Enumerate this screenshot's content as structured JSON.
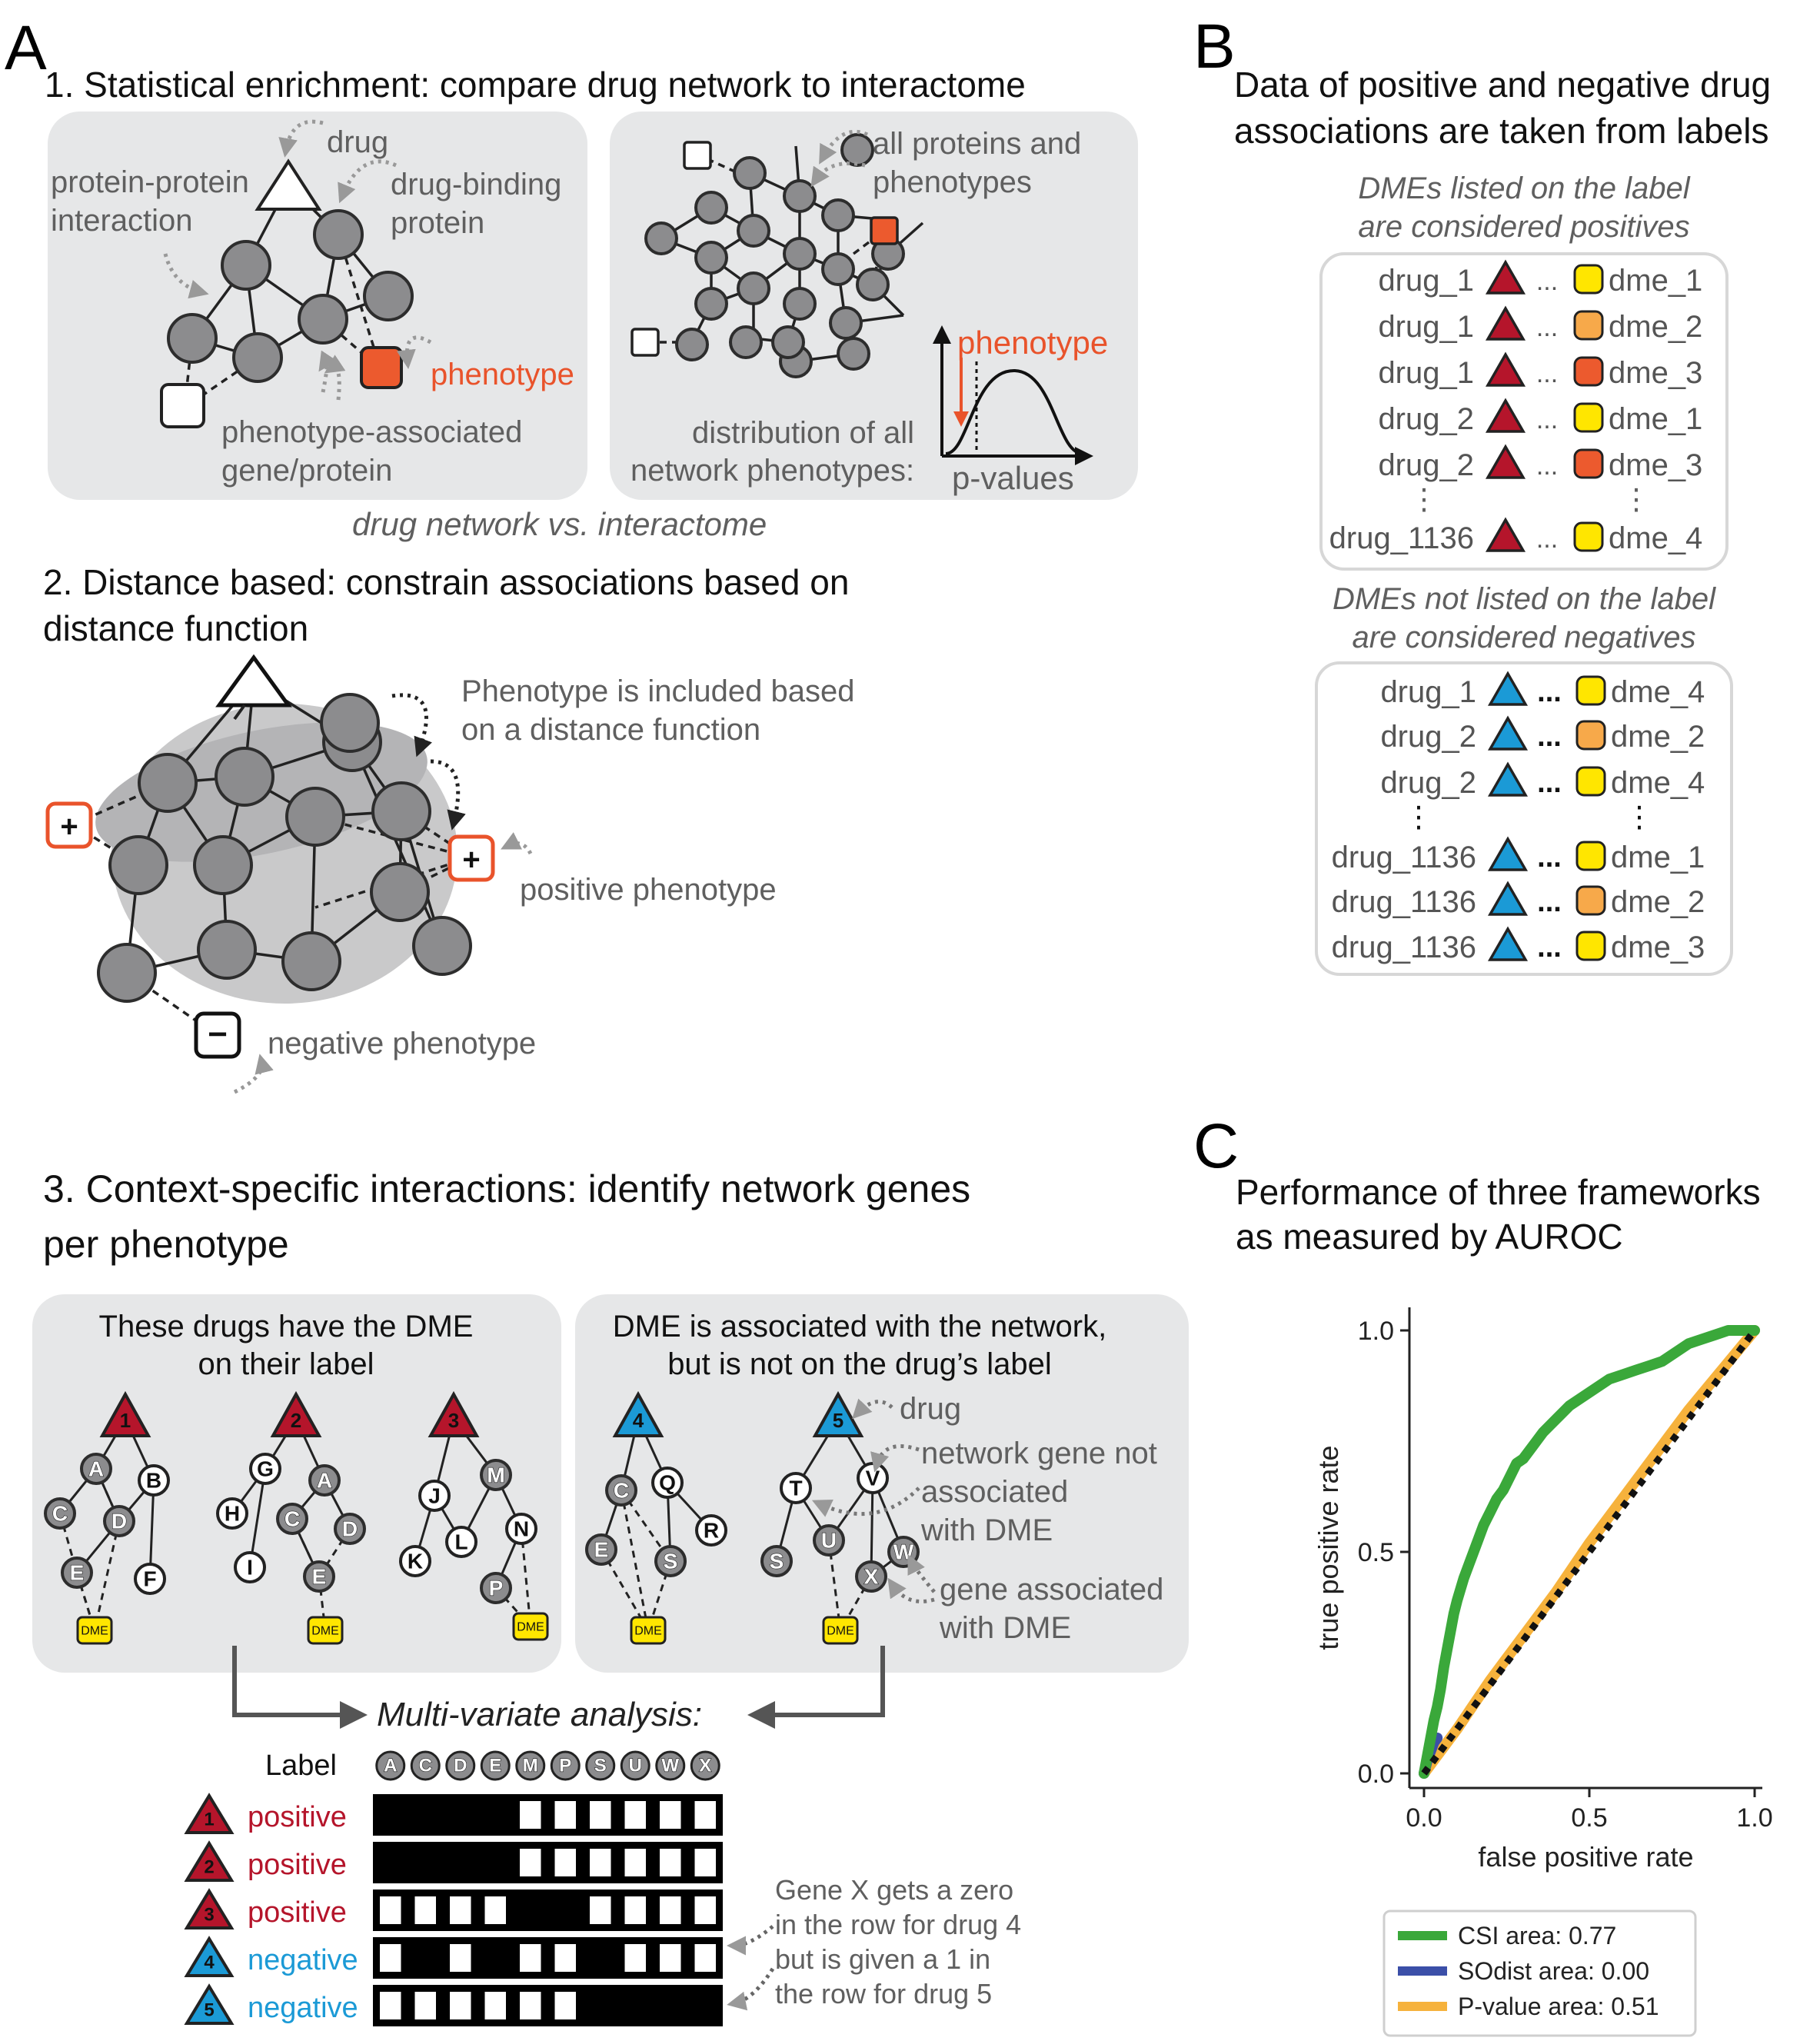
{
  "panelA": {
    "letter": "A",
    "s1_title": "1. Statistical enrichment: compare drug network to interactome",
    "s1_drug": "drug",
    "s1_ppi_1": "protein-protein",
    "s1_ppi_2": "interaction",
    "s1_dbp_1": "drug-binding",
    "s1_dbp_2": "protein",
    "s1_phenotype": "phenotype",
    "s1_pag_1": "phenotype-associated",
    "s1_pag_2": "gene/protein",
    "s1_all_1": "all proteins and",
    "s1_all_2": "phenotypes",
    "s1_dist_1": "distribution of all",
    "s1_dist_2": "network phenotypes:",
    "s1_pheno2": "phenotype",
    "s1_pvalues": "p-values",
    "s1_caption": "drug network vs. interactome",
    "s2_title_1": "2. Distance based: constrain associations based on",
    "s2_title_2": "distance function",
    "s2_note_1": "Phenotype is included based",
    "s2_note_2": "on a distance function",
    "s2_pos": "positive phenotype",
    "s2_neg": "negative phenotype",
    "s3_title_1": "3. Context-specific interactions: identify network genes",
    "s3_title_2": "per phenotype",
    "s3_box1_1": "These drugs have the DME",
    "s3_box1_2": "on their label",
    "s3_box2_1": "DME is associated with the network,",
    "s3_box2_2": "but is not on the drug’s label",
    "s3_drug": "drug",
    "s3_ng_1": "network gene not",
    "s3_ng_2": "associated",
    "s3_ng_3": "with DME",
    "s3_ga_1": "gene associated",
    "s3_ga_2": "with DME",
    "s3_dme": "DME",
    "s3_mva": "Multi-variate analysis:",
    "s3_label": "Label",
    "s3_genes": [
      "A",
      "C",
      "D",
      "E",
      "M",
      "P",
      "S",
      "U",
      "W",
      "X"
    ],
    "s3_rows": [
      {
        "n": "1",
        "label": "positive",
        "kind": "pos",
        "cells": [
          1,
          1,
          1,
          1,
          0,
          0,
          0,
          0,
          0,
          0
        ]
      },
      {
        "n": "2",
        "label": "positive",
        "kind": "pos",
        "cells": [
          1,
          1,
          1,
          1,
          0,
          0,
          0,
          0,
          0,
          0
        ]
      },
      {
        "n": "3",
        "label": "positive",
        "kind": "pos",
        "cells": [
          0,
          0,
          0,
          0,
          1,
          1,
          0,
          0,
          0,
          0
        ]
      },
      {
        "n": "4",
        "label": "negative",
        "kind": "neg",
        "cells": [
          0,
          1,
          0,
          1,
          0,
          0,
          1,
          0,
          0,
          0
        ]
      },
      {
        "n": "5",
        "label": "negative",
        "kind": "neg",
        "cells": [
          0,
          0,
          0,
          0,
          0,
          0,
          1,
          1,
          1,
          1
        ]
      }
    ],
    "s3_note_1": "Gene X gets a zero",
    "s3_note_2": "in the row for drug 4",
    "s3_note_3": "but is given a 1 in",
    "s3_note_4": "the row for drug 5"
  },
  "panelB": {
    "letter": "B",
    "title_1": "Data of positive and negative drug",
    "title_2": "associations are taken from labels",
    "pos_cap_1": "DMEs listed on the label",
    "pos_cap_2": "are considered positives",
    "neg_cap_1": "DMEs not listed on the label",
    "neg_cap_2": "are considered negatives",
    "ellipsis": "...",
    "vdots": "⋮",
    "positives": [
      {
        "drug": "drug_1",
        "dme": "dme_1",
        "color": "#ffe600"
      },
      {
        "drug": "drug_1",
        "dme": "dme_2",
        "color": "#f7a94a"
      },
      {
        "drug": "drug_1",
        "dme": "dme_3",
        "color": "#ec5a2e"
      },
      {
        "drug": "drug_2",
        "dme": "dme_1",
        "color": "#ffe600"
      },
      {
        "drug": "drug_2",
        "dme": "dme_3",
        "color": "#ec5a2e"
      },
      {
        "drug": "drug_1136",
        "dme": "dme_4",
        "color": "#ffe600"
      }
    ],
    "negatives": [
      {
        "drug": "drug_1",
        "dme": "dme_4",
        "color": "#ffe600"
      },
      {
        "drug": "drug_2",
        "dme": "dme_2",
        "color": "#f7a94a"
      },
      {
        "drug": "drug_2",
        "dme": "dme_4",
        "color": "#ffe600"
      },
      {
        "drug": "drug_1136",
        "dme": "dme_1",
        "color": "#ffe600"
      },
      {
        "drug": "drug_1136",
        "dme": "dme_2",
        "color": "#f7a94a"
      },
      {
        "drug": "drug_1136",
        "dme": "dme_3",
        "color": "#ffe600"
      }
    ]
  },
  "panelC": {
    "letter": "C",
    "title_1": "Performance of three frameworks",
    "title_2": "as measured by AUROC"
  },
  "chart_data": {
    "type": "line",
    "title": "",
    "xlabel": "false positive rate",
    "ylabel": "true positive rate",
    "xlim": [
      0,
      1
    ],
    "ylim": [
      0,
      1
    ],
    "xticks": [
      "0.0",
      "0.5",
      "1.0"
    ],
    "yticks": [
      "0.0",
      "0.5",
      "1.0"
    ],
    "legend_position": "below",
    "series": [
      {
        "name": "CSI area: 0.77",
        "color": "#3aa83a",
        "x": [
          0.0,
          0.01,
          0.02,
          0.03,
          0.04,
          0.05,
          0.06,
          0.07,
          0.08,
          0.09,
          0.1,
          0.12,
          0.14,
          0.16,
          0.18,
          0.2,
          0.22,
          0.24,
          0.26,
          0.28,
          0.3,
          0.33,
          0.36,
          0.4,
          0.44,
          0.48,
          0.52,
          0.56,
          0.6,
          0.64,
          0.68,
          0.72,
          0.76,
          0.8,
          0.84,
          0.88,
          0.92,
          0.96,
          1.0
        ],
        "y": [
          0.0,
          0.04,
          0.08,
          0.12,
          0.15,
          0.19,
          0.24,
          0.28,
          0.32,
          0.36,
          0.39,
          0.44,
          0.48,
          0.52,
          0.56,
          0.59,
          0.62,
          0.64,
          0.67,
          0.7,
          0.71,
          0.74,
          0.77,
          0.8,
          0.83,
          0.85,
          0.87,
          0.89,
          0.9,
          0.91,
          0.92,
          0.93,
          0.95,
          0.97,
          0.98,
          0.99,
          1.0,
          1.0,
          1.0
        ]
      },
      {
        "name": "SOdist area: 0.00",
        "color": "#3b4fa8",
        "x": [
          0.0,
          0.01,
          0.02,
          0.03,
          0.04
        ],
        "y": [
          0.0,
          0.03,
          0.05,
          0.07,
          0.08
        ]
      },
      {
        "name": "P-value area: 0.51",
        "color": "#f6b23c",
        "x": [
          0.0,
          0.1,
          0.2,
          0.3,
          0.4,
          0.5,
          0.6,
          0.7,
          0.8,
          0.9,
          1.0
        ],
        "y": [
          0.0,
          0.1,
          0.21,
          0.31,
          0.41,
          0.52,
          0.62,
          0.72,
          0.82,
          0.91,
          1.0
        ]
      },
      {
        "name": "",
        "color": "#111111",
        "dashed": true,
        "x": [
          0.0,
          1.0
        ],
        "y": [
          0.0,
          1.0
        ]
      }
    ]
  }
}
